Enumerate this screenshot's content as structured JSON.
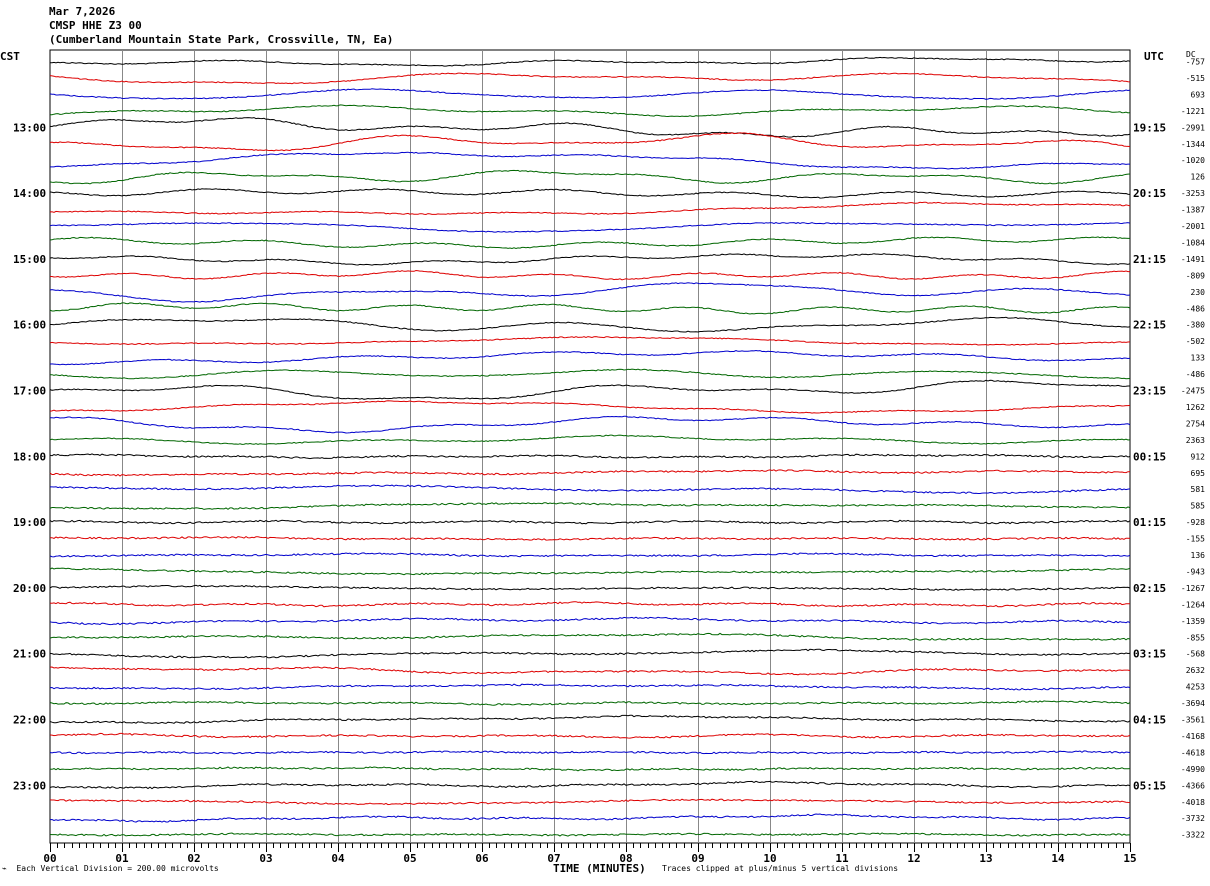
{
  "header": {
    "date": "Mar 7,2026",
    "station": "CMSP HHE Z3 00",
    "location": "(Cumberland Mountain State Park, Crossville, TN, Ea)"
  },
  "left_tz": "CST",
  "right_tz": "UTC",
  "dc_label": "DC",
  "footer": {
    "xlabel": "TIME (MINUTES)",
    "scale": "Each Vertical Division =  200.00 microvolts",
    "clip": "Traces clipped at plus/minus 5 vertical divisions"
  },
  "chart_data": {
    "type": "line",
    "title": "CMSP HHE Z3 00",
    "xlabel": "TIME (MINUTES)",
    "ylabel": "",
    "xlim": [
      0,
      15
    ],
    "x_ticks": [
      "00",
      "01",
      "02",
      "03",
      "04",
      "05",
      "06",
      "07",
      "08",
      "09",
      "10",
      "11",
      "12",
      "13",
      "14",
      "15"
    ],
    "trace_colors": [
      "#000000",
      "#dd0000",
      "#0000cc",
      "#006600"
    ],
    "hour_labels_left": [
      "13:00",
      "14:00",
      "15:00",
      "16:00",
      "17:00",
      "18:00",
      "19:00",
      "20:00",
      "21:00",
      "22:00",
      "23:00"
    ],
    "hour_labels_right": [
      "19:15",
      "20:15",
      "21:15",
      "22:15",
      "23:15",
      "00:15",
      "01:15",
      "02:15",
      "03:15",
      "04:15",
      "05:15"
    ],
    "dc_offsets": [
      "-757",
      "-515",
      "693",
      "-1221",
      "-2991",
      "-1344",
      "-1020",
      "126",
      "-3253",
      "-1387",
      "-2001",
      "-1084",
      "-1491",
      "-809",
      "230",
      "-486",
      "-380",
      "-502",
      "133",
      "-486",
      "-2475",
      "1262",
      "2754",
      "2363",
      "912",
      "695",
      "581",
      "585",
      "-928",
      "-155",
      "136",
      "-943",
      "-1267",
      "-1264",
      "-1359",
      "-855",
      "-568",
      "2632",
      "4253",
      "-3694",
      "-3561",
      "-4168",
      "-4618",
      "-4990",
      "-4366",
      "-4018",
      "-3732",
      "-3322"
    ]
  }
}
